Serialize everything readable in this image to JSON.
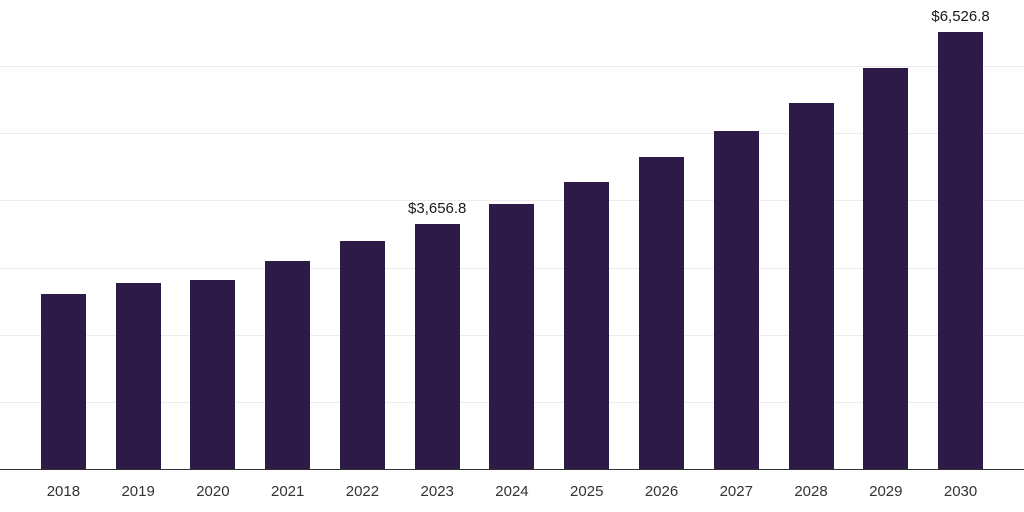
{
  "chart_data": {
    "type": "bar",
    "title": "",
    "xlabel": "",
    "ylabel": "",
    "categories": [
      "2018",
      "2019",
      "2020",
      "2021",
      "2022",
      "2023",
      "2024",
      "2025",
      "2026",
      "2027",
      "2028",
      "2029",
      "2030"
    ],
    "values": [
      2610,
      2770,
      2820,
      3100,
      3400,
      3656.8,
      3950,
      4280,
      4650,
      5050,
      5470,
      5990,
      6526.8
    ],
    "data_labels": {
      "2023": "$3,656.8",
      "2030": "$6,526.8"
    },
    "ylim": [
      0,
      7000
    ],
    "grid": true,
    "grid_step": 1000,
    "legend": "none",
    "bar_color": "#2e1a47",
    "gridline_color": "#ececec",
    "axis_line_color": "#333333",
    "data_label_color": "#1a1a1a",
    "tick_label_color": "#333333"
  }
}
